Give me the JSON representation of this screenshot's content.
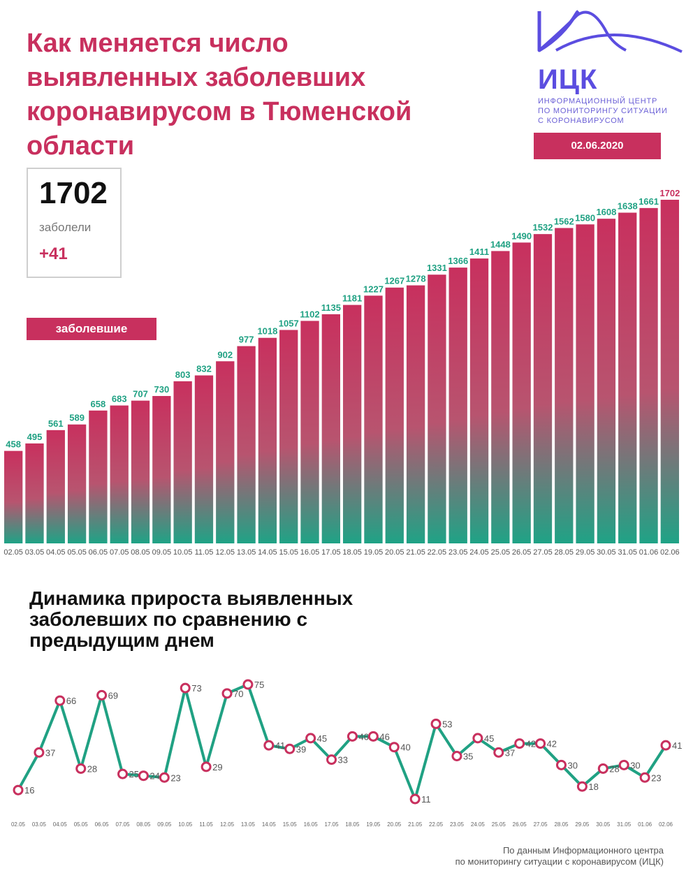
{
  "title": "Как меняется число выявленных заболевших коронавирусом в Тюменской области",
  "logo": {
    "name": "ИЦК",
    "subtitle_lines": [
      "ИНФОРМАЦИОННЫЙ ЦЕНТР",
      "ПО МОНИТОРИНГУ СИТУАЦИИ",
      "С КОРОНАВИРУСОМ"
    ]
  },
  "date": "02.06.2020",
  "summary": {
    "total": "1702",
    "label": "заболели",
    "delta": "+41"
  },
  "legend_label": "заболевшие",
  "subtitle": "Динамика прироста выявленных заболевших по сравнению с предыдущим днем",
  "source_lines": [
    "По данным Информационного центра",
    "по мониторингу ситуации с коронавирусом (ИЦК)"
  ],
  "colors": {
    "accent": "#c8305e",
    "teal": "#20a183",
    "brand": "#5b4de0",
    "bar_top": "#c8305e",
    "bar_bottom": "#1fa386"
  },
  "chart_data": [
    {
      "type": "bar",
      "title": "заболевшие",
      "categories": [
        "02.05",
        "03.05",
        "04.05",
        "05.05",
        "06.05",
        "07.05",
        "08.05",
        "09.05",
        "10.05",
        "11.05",
        "12.05",
        "13.05",
        "14.05",
        "15.05",
        "16.05",
        "17.05",
        "18.05",
        "19.05",
        "20.05",
        "21.05",
        "22.05",
        "23.05",
        "24.05",
        "25.05",
        "26.05",
        "27.05",
        "28.05",
        "29.05",
        "30.05",
        "31.05",
        "01.06",
        "02.06"
      ],
      "values": [
        458,
        495,
        561,
        589,
        658,
        683,
        707,
        730,
        803,
        832,
        902,
        977,
        1018,
        1057,
        1102,
        1135,
        1181,
        1227,
        1267,
        1278,
        1331,
        1366,
        1411,
        1448,
        1490,
        1532,
        1562,
        1580,
        1608,
        1638,
        1661,
        1702
      ],
      "ylim": [
        0,
        1702
      ],
      "xlabel": "",
      "ylabel": "",
      "grid": false
    },
    {
      "type": "line",
      "title": "Динамика прироста выявленных заболевших по сравнению с предыдущим днем",
      "categories": [
        "02.05",
        "03.05",
        "04.05",
        "05.05",
        "06.05",
        "07.05",
        "08.05",
        "09.05",
        "10.05",
        "11.05",
        "12.05",
        "13.05",
        "14.05",
        "15.05",
        "16.05",
        "17.05",
        "18.05",
        "19.05",
        "20.05",
        "21.05",
        "22.05",
        "23.05",
        "24.05",
        "25.05",
        "26.05",
        "27.05",
        "28.05",
        "29.05",
        "30.05",
        "31.05",
        "01.06",
        "02.06"
      ],
      "values": [
        16,
        37,
        66,
        28,
        69,
        25,
        24,
        23,
        73,
        29,
        70,
        75,
        41,
        39,
        45,
        33,
        46,
        46,
        40,
        11,
        53,
        35,
        45,
        37,
        42,
        42,
        30,
        18,
        28,
        30,
        23,
        41
      ],
      "ylim": [
        11,
        75
      ],
      "xlabel": "",
      "ylabel": "",
      "grid": false
    }
  ]
}
